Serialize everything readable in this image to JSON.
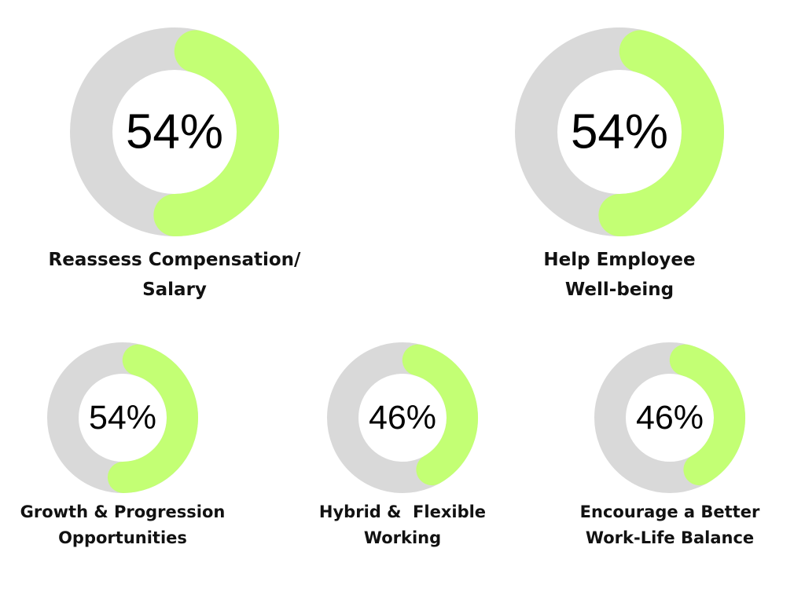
{
  "colors": {
    "track": "#d9d9d9",
    "progress": "#c3ff74",
    "text": "#000000"
  },
  "chart_data": [
    {
      "type": "pie",
      "variant": "donut",
      "value_percent": 54,
      "value_label": "54%",
      "label_lines": [
        "Reassess Compensation/",
        "Salary"
      ]
    },
    {
      "type": "pie",
      "variant": "donut",
      "value_percent": 54,
      "value_label": "54%",
      "label_lines": [
        "Help Employee",
        "Well-being"
      ]
    },
    {
      "type": "pie",
      "variant": "donut",
      "value_percent": 54,
      "value_label": "54%",
      "label_lines": [
        "Growth & Progression",
        "Opportunities"
      ]
    },
    {
      "type": "pie",
      "variant": "donut",
      "value_percent": 46,
      "value_label": "46%",
      "label_lines": [
        "Hybrid &  Flexible",
        "Working"
      ]
    },
    {
      "type": "pie",
      "variant": "donut",
      "value_percent": 46,
      "value_label": "46%",
      "label_lines": [
        "Encourage a Better",
        "Work-Life Balance"
      ]
    }
  ]
}
